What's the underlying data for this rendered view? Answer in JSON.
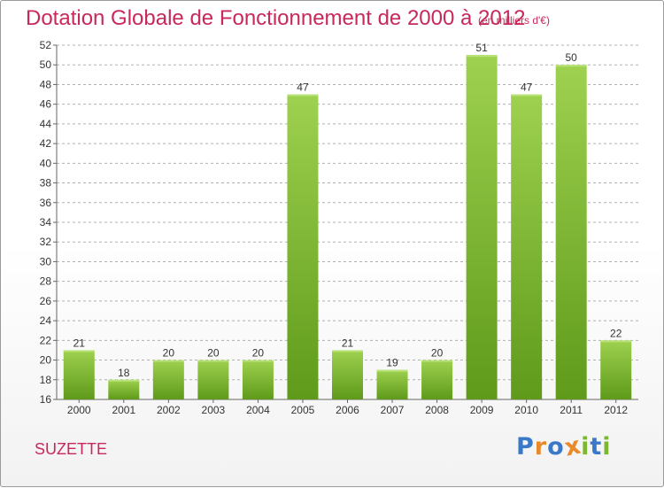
{
  "header": {
    "title": "Dotation Globale de Fonctionnement de 2000 à 2012",
    "subtitle": "(en milliers d'€)"
  },
  "footer": {
    "commune": "SUZETTE",
    "logo": [
      "P",
      "r",
      "o",
      "x",
      "i",
      "t",
      "i"
    ],
    "logo_colors": [
      "#3a78c8",
      "#e8892a",
      "#3a78c8",
      "#e8892a",
      "#7cb82f",
      "#3a78c8",
      "#7cb82f"
    ]
  },
  "colors": {
    "title": "#c8285a",
    "bar_light": "#9ed14f",
    "bar_dark": "#5f9a1a",
    "grid": "#b0b0b0"
  },
  "chart_data": {
    "type": "bar",
    "title": "Dotation Globale de Fonctionnement de 2000 à 2012",
    "subtitle": "(en milliers d'€)",
    "categories": [
      "2000",
      "2001",
      "2002",
      "2003",
      "2004",
      "2005",
      "2006",
      "2007",
      "2008",
      "2009",
      "2010",
      "2011",
      "2012"
    ],
    "values": [
      21,
      18,
      20,
      20,
      20,
      47,
      21,
      19,
      20,
      51,
      47,
      50,
      22
    ],
    "ylim": [
      16,
      52
    ],
    "yticks": [
      16,
      18,
      20,
      22,
      24,
      26,
      28,
      30,
      32,
      34,
      36,
      38,
      40,
      42,
      44,
      46,
      48,
      50,
      52
    ],
    "grid": "horizontal dashed",
    "legend": "none"
  }
}
